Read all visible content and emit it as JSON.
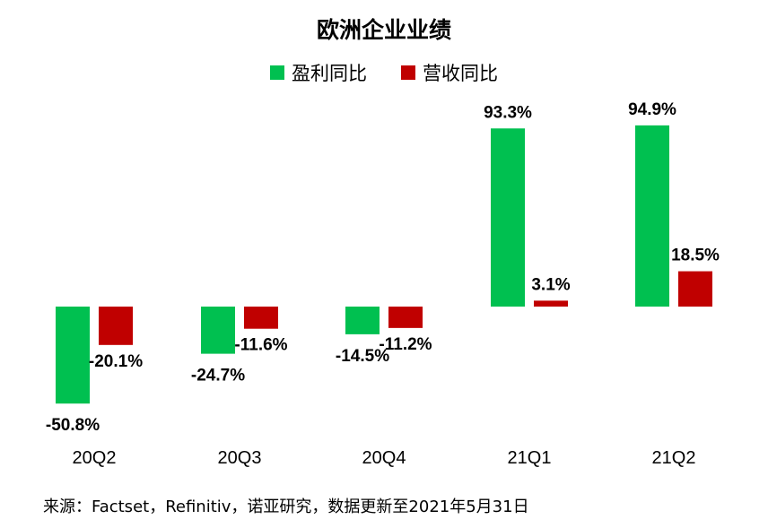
{
  "chart_data": {
    "type": "bar",
    "title": "欧洲企业业绩",
    "categories": [
      "20Q2",
      "20Q3",
      "20Q4",
      "21Q1",
      "21Q2"
    ],
    "series": [
      {
        "name": "盈利同比",
        "color": "#00c050",
        "values": [
          -50.8,
          -24.7,
          -14.5,
          93.3,
          94.9
        ],
        "labels": [
          "-50.8%",
          "-24.7%",
          "-14.5%",
          "93.3%",
          "94.9%"
        ]
      },
      {
        "name": "营收同比",
        "color": "#c00000",
        "values": [
          -20.1,
          -11.6,
          -11.2,
          3.1,
          18.5
        ],
        "labels": [
          "-20.1%",
          "-11.6%",
          "-11.2%",
          "3.1%",
          "18.5%"
        ]
      }
    ],
    "legend_position": "top-center",
    "grid": false,
    "xlabel": "",
    "ylabel": ""
  },
  "footer": {
    "source": "来源：Factset，Refinitiv，诺亚研究，数据更新至2021年5月31日"
  }
}
